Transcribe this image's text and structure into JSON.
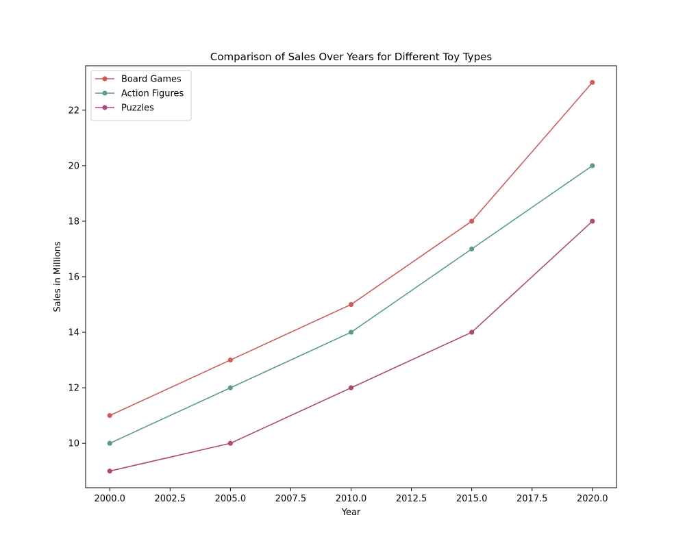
{
  "chart_data": {
    "type": "line",
    "title": "Comparison of Sales Over Years for Different Toy Types",
    "xlabel": "Year",
    "ylabel": "Sales in Millions",
    "x": [
      2000,
      2005,
      2010,
      2015,
      2020
    ],
    "xlim": [
      1999,
      2021
    ],
    "ylim": [
      8.4,
      23.6
    ],
    "xticks": [
      2000,
      2002.5,
      2005,
      2007.5,
      2010,
      2012.5,
      2015,
      2017.5,
      2020
    ],
    "xtick_labels": [
      "2000.0",
      "2002.5",
      "2005.0",
      "2007.5",
      "2010.0",
      "2012.5",
      "2015.0",
      "2017.5",
      "2020.0"
    ],
    "yticks": [
      10,
      12,
      14,
      16,
      18,
      20,
      22
    ],
    "ytick_labels": [
      "10",
      "12",
      "14",
      "16",
      "18",
      "20",
      "22"
    ],
    "grid": false,
    "legend_position": "top-left",
    "series": [
      {
        "name": "Board Games",
        "color": "#cd5c5c",
        "values": [
          11,
          13,
          15,
          18,
          23
        ]
      },
      {
        "name": "Action Figures",
        "color": "#5a9b91",
        "values": [
          10,
          12,
          14,
          17,
          20
        ]
      },
      {
        "name": "Puzzles",
        "color": "#aa4a78",
        "values": [
          9,
          10,
          12,
          14,
          18
        ]
      }
    ]
  }
}
